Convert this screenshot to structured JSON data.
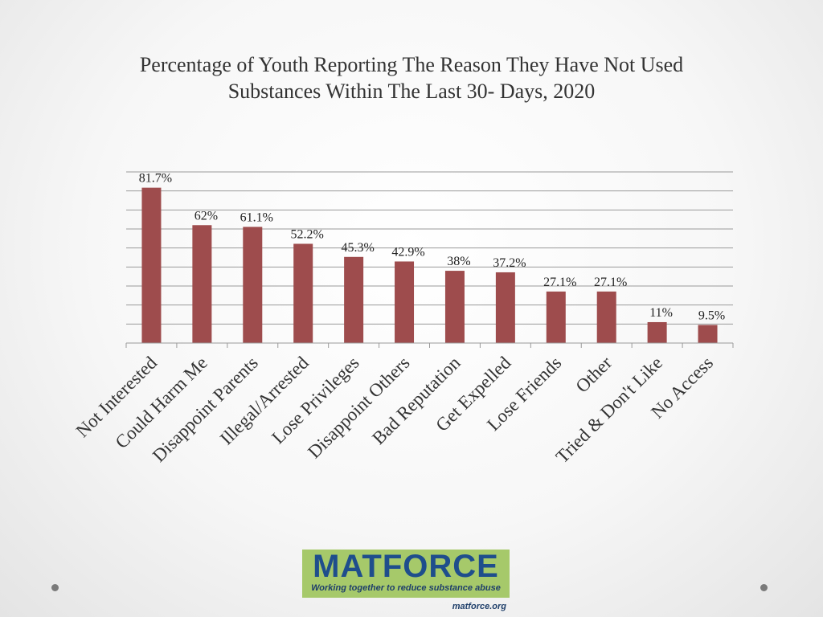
{
  "slide": {
    "title_line1": "Percentage of Youth Reporting The Reason They Have Not Used",
    "title_line2": "Substances Within The Last 30- Days, 2020"
  },
  "chart_data": {
    "type": "bar",
    "title": "Percentage of Youth Reporting The Reason They Have Not Used Substances Within The Last 30- Days, 2020",
    "xlabel": "",
    "ylabel": "",
    "ylim": [
      0,
      90
    ],
    "grid": true,
    "legend": "none",
    "categories": [
      "Not Interested",
      "Could Harm Me",
      "Disappoint Parents",
      "Illegal/Arrested",
      "Lose Privileges",
      "Disappoint Others",
      "Bad Reputation",
      "Get Expelled",
      "Lose Friends",
      "Other",
      "Tried & Don't Like",
      "No Access"
    ],
    "values": [
      81.7,
      62,
      61.1,
      52.2,
      45.3,
      42.9,
      38,
      37.2,
      27.1,
      27.1,
      11,
      9.5
    ],
    "data_labels": [
      "81.7%",
      "62%",
      "61.1%",
      "52.2%",
      "45.3%",
      "42.9%",
      "38%",
      "37.2%",
      "27.1%",
      "27.1%",
      "11%",
      "9.5%"
    ],
    "bar_color": "#9e4c4d"
  },
  "logo": {
    "name": "MATFORCE",
    "tagline": "Working together to reduce substance abuse",
    "url": "matforce.org"
  }
}
